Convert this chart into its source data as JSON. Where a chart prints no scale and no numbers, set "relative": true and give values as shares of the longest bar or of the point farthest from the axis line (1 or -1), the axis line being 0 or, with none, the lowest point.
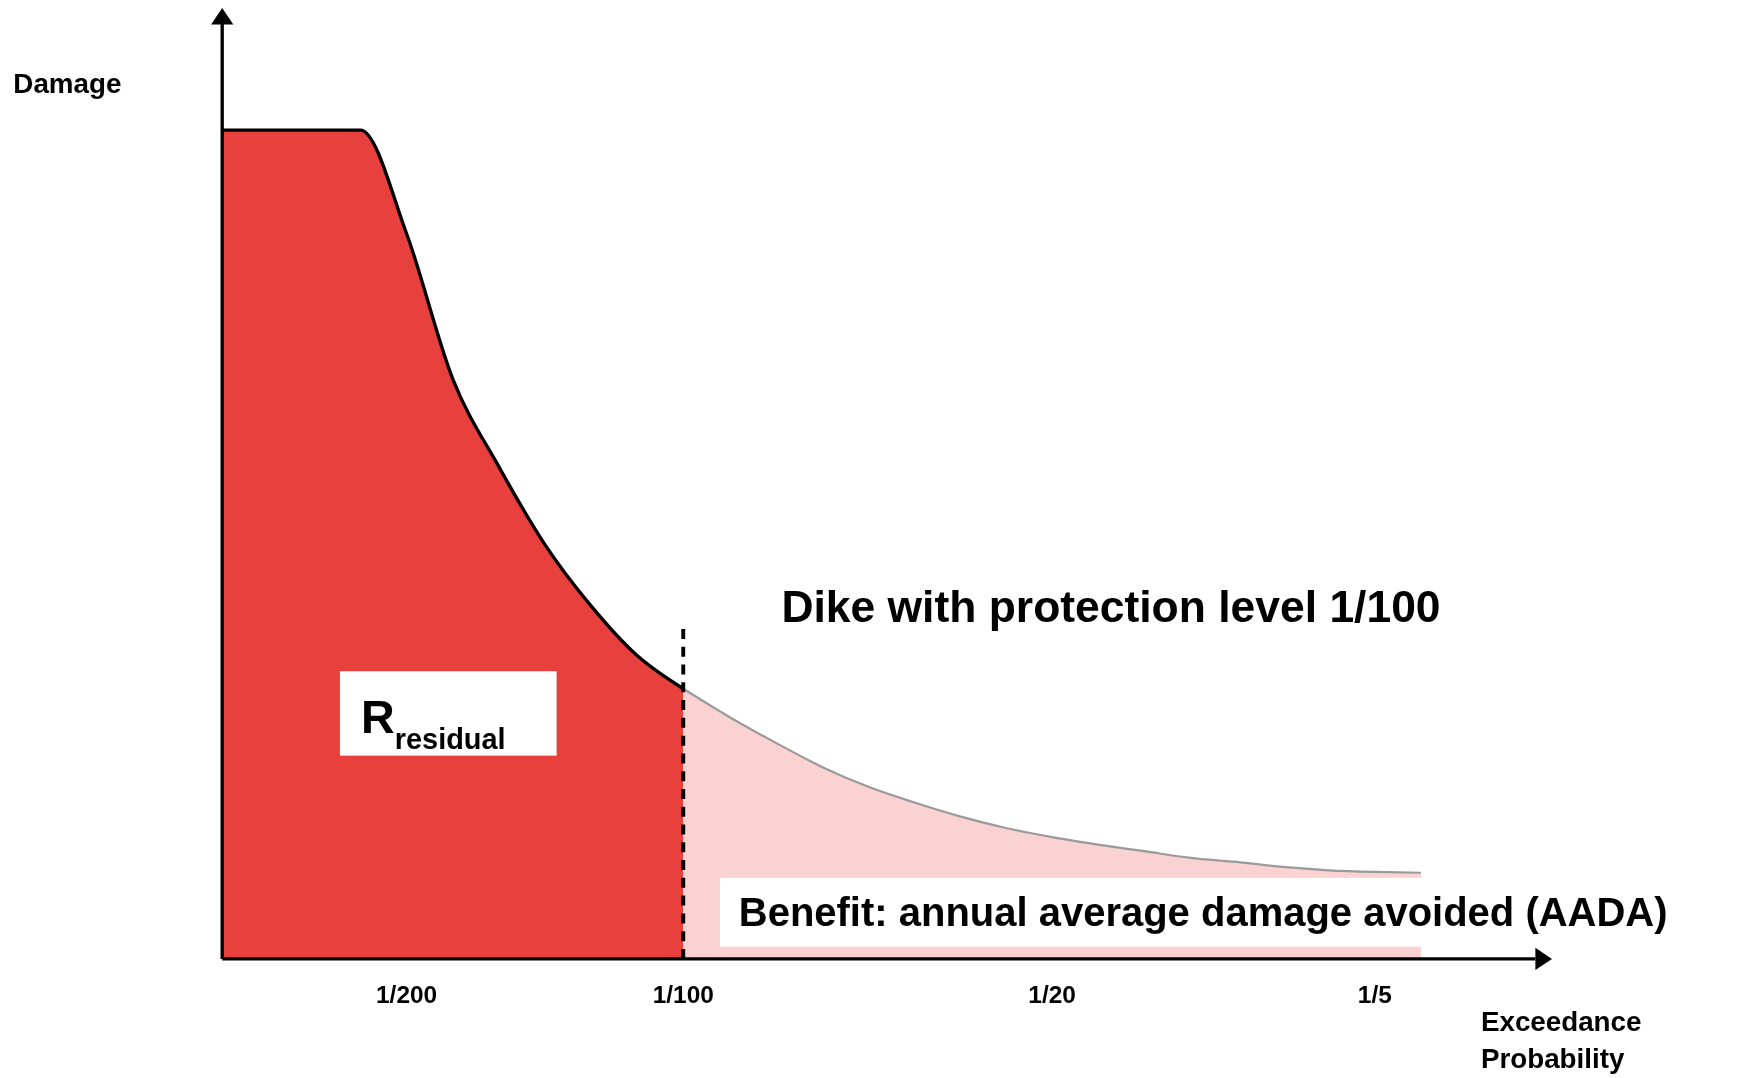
{
  "chart_data": {
    "type": "area",
    "relative": true,
    "xlabel": "Exceedance Probability",
    "ylabel": "Damage",
    "categories": [
      null,
      null,
      null,
      null,
      "1/200",
      null,
      null,
      null,
      null,
      null,
      "1/100",
      null,
      null,
      null,
      null,
      null,
      null,
      null,
      "1/20",
      null,
      null,
      null,
      null,
      null,
      null,
      "1/5",
      null,
      null,
      null
    ],
    "series": [
      {
        "color": "#e8403c",
        "values": [
          1,
          1,
          1,
          1,
          0.875,
          0.7,
          0.594,
          0.5,
          0.426,
          0.366,
          0.326,
          null,
          null,
          null,
          null,
          null,
          null,
          null,
          null,
          null,
          null,
          null,
          null,
          null,
          null,
          null,
          null,
          null,
          null
        ]
      },
      {
        "color": "#fbd2d2",
        "values": [
          null,
          null,
          null,
          null,
          null,
          null,
          null,
          null,
          null,
          null,
          0.326,
          0.292,
          0.261,
          0.232,
          0.208,
          0.189,
          0.172,
          0.158,
          0.147,
          0.138,
          0.13,
          0.122,
          0.117,
          0.111,
          0.107,
          0.105,
          0.104,
          null,
          null
        ]
      }
    ],
    "ref_lines": [
      {
        "axis": "x",
        "value": "1/100",
        "line_style": "dashed",
        "color": "#000000"
      }
    ],
    "annotations": [
      "Dike with protection level 1/100",
      "R$_{residual}$",
      "Benefit: annual average damage avoided (AADA)"
    ]
  }
}
